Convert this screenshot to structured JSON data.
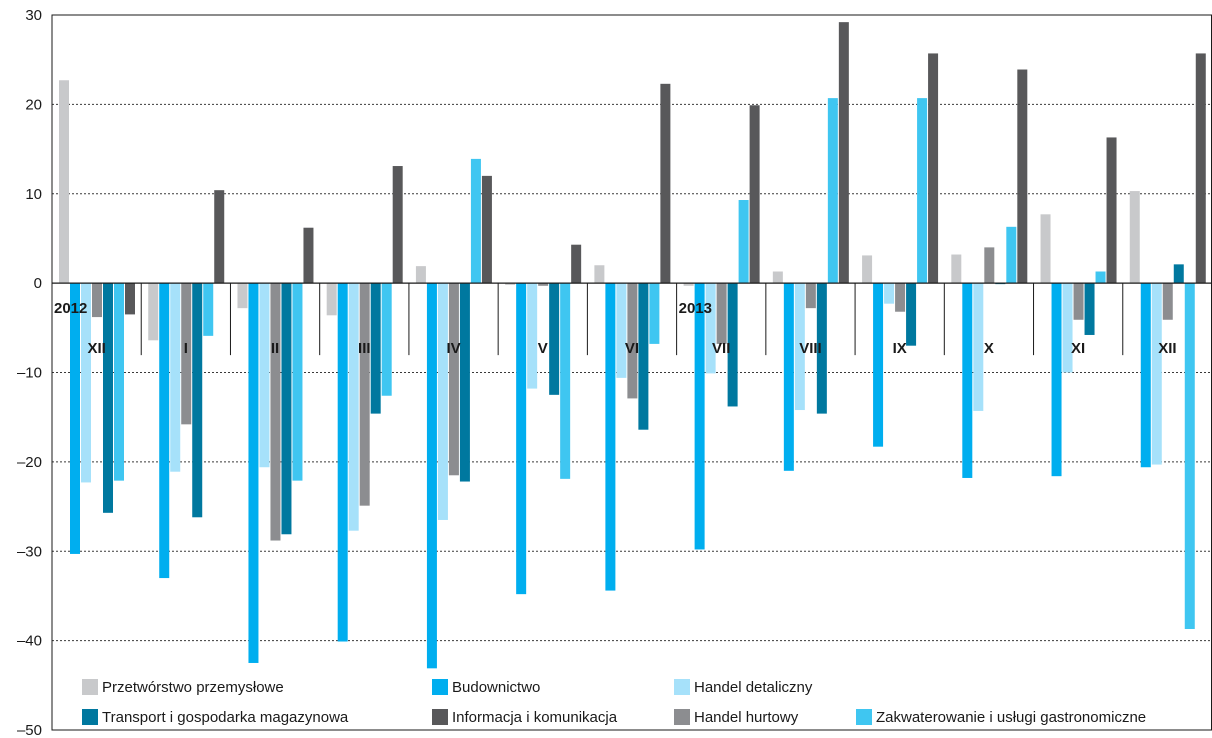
{
  "chart_data": {
    "type": "bar",
    "title": "",
    "xlabel": "",
    "ylabel": "",
    "ylim": [
      -50,
      30
    ],
    "yticks": [
      30,
      20,
      10,
      0,
      -10,
      -20,
      -30,
      -40,
      -50
    ],
    "ytick_labels": [
      "30",
      "20",
      "10",
      "0",
      "–10",
      "–20",
      "–30",
      "–40",
      "–50"
    ],
    "grid": true,
    "legend_position": "bottom-inside",
    "categories": [
      "XII",
      "I",
      "II",
      "III",
      "IV",
      "V",
      "VI",
      "VII",
      "VIII",
      "IX",
      "X",
      "XI",
      "XII"
    ],
    "year_labels": [
      {
        "text": "2012",
        "category_index": 0
      },
      {
        "text": "2013",
        "category_index": 7
      }
    ],
    "series": [
      {
        "name": "Przetwórstwo przemysłowe",
        "color": "#c8c9cb",
        "values": [
          22.7,
          -6.4,
          -2.8,
          -3.6,
          1.9,
          -0.2,
          2.0,
          -0.3,
          1.3,
          3.1,
          3.2,
          7.7,
          10.3
        ]
      },
      {
        "name": "Budownictwo",
        "color": "#00aeef",
        "values": [
          -30.3,
          -33.0,
          -42.5,
          -40.1,
          -43.1,
          -34.8,
          -34.4,
          -29.8,
          -21.0,
          -18.3,
          -21.8,
          -21.6,
          -20.6
        ]
      },
      {
        "name": "Handel detaliczny",
        "color": "#a6e1fa",
        "values": [
          -22.3,
          -21.1,
          -20.6,
          -27.7,
          -26.5,
          -11.8,
          -10.6,
          -10.1,
          -14.2,
          -2.3,
          -14.3,
          -10.0,
          -20.3
        ]
      },
      {
        "name": "Handel hurtowy",
        "color": "#8c8d90",
        "values": [
          -3.8,
          -15.8,
          -28.8,
          -24.9,
          -21.5,
          -0.3,
          -12.9,
          -6.8,
          -2.8,
          -3.2,
          4.0,
          -4.1,
          -4.1
        ]
      },
      {
        "name": "Transport i gospodarka magazynowa",
        "color": "#00789f",
        "values": [
          -25.7,
          -26.2,
          -28.1,
          -14.6,
          -22.2,
          -12.5,
          -16.4,
          -13.8,
          -14.6,
          -7.0,
          -0.1,
          -5.8,
          2.1
        ]
      },
      {
        "name": "Zakwaterowanie i usługi gastronomiczne",
        "color": "#3fc6f1",
        "values": [
          -22.1,
          -5.9,
          -22.1,
          -12.6,
          13.9,
          -21.9,
          -6.8,
          9.3,
          20.7,
          20.7,
          6.3,
          1.3,
          -38.7
        ]
      },
      {
        "name": "Informacja i komunikacja",
        "color": "#58585a",
        "values": [
          -3.5,
          10.4,
          6.2,
          13.1,
          12.0,
          4.3,
          22.3,
          19.9,
          29.2,
          25.7,
          23.9,
          16.3,
          25.7
        ]
      }
    ],
    "legend_rows": [
      [
        "Przetwórstwo przemysłowe",
        "Budownictwo",
        "Handel detaliczny"
      ],
      [
        "Transport i gospodarka magazynowa",
        "Informacja i komunikacja",
        "Handel hurtowy",
        "Zakwaterowanie i usługi gastronomiczne"
      ]
    ]
  }
}
